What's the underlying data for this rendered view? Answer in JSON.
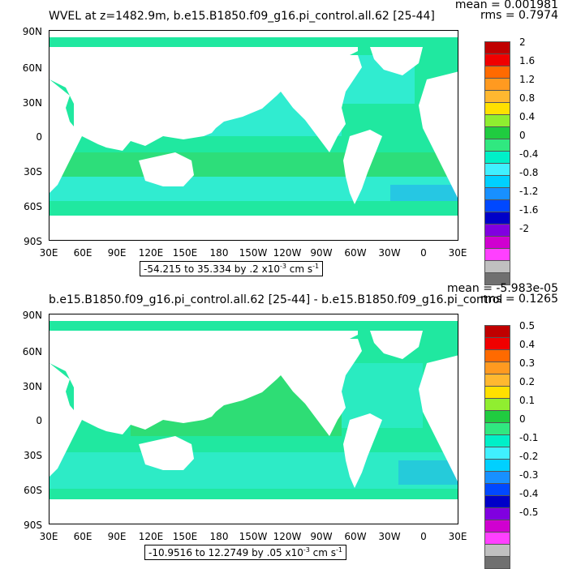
{
  "panels": [
    {
      "title": "WVEL at z=1482.9m, b.e15.B1850.f09_g16.pi_control.all.62 [25-44]",
      "mean_text": "mean = 0.001981",
      "rms_text": "rms = 0.7974",
      "range_prefix": "-54.215 to 35.334 by .2 x10",
      "range_exp": "-3",
      "range_unit": " cm s",
      "range_unit_exp": "-1",
      "colorbar_labels": [
        "2",
        "1.6",
        "1.2",
        "0.8",
        "0.4",
        "0",
        "-0.4",
        "-0.8",
        "-1.2",
        "-1.6",
        "-2"
      ]
    },
    {
      "title": "b.e15.B1850.f09_g16.pi_control.all.62 [25-44] - b.e15.B1850.f09_g16.pi_control",
      "mean_text": "mean = -5.983e-05",
      "rms_text": "rms = 0.1265",
      "range_prefix": "-10.9516 to 12.2749 by .05 x10",
      "range_exp": "-3",
      "range_unit": " cm s",
      "range_unit_exp": "-1",
      "colorbar_labels": [
        "0.5",
        "0.4",
        "0.3",
        "0.2",
        "0.1",
        "0",
        "-0.1",
        "-0.2",
        "-0.3",
        "-0.4",
        "-0.5"
      ]
    }
  ],
  "lat_labels": [
    "90N",
    "60N",
    "30N",
    "0",
    "30S",
    "60S",
    "90S"
  ],
  "lon_labels": [
    "30E",
    "60E",
    "90E",
    "120E",
    "150E",
    "180",
    "150W",
    "120W",
    "90W",
    "60W",
    "30W",
    "0",
    "30E"
  ],
  "colorbar_colors": [
    "#c00000",
    "#f00000",
    "#ff6a00",
    "#ff9a20",
    "#ffb830",
    "#ffe000",
    "#90ee30",
    "#20cc40",
    "#30e880",
    "#00f0c8",
    "#40f0ff",
    "#00d0ff",
    "#1890ff",
    "#0048ff",
    "#0000c8",
    "#8000e0",
    "#d000d0",
    "#ff40ff",
    "#c0c0c0",
    "#707070"
  ],
  "ocean_colors": {
    "base": "#20e8a0",
    "cyan": "#40f0ff",
    "green": "#40d040",
    "blue": "#1890ff"
  }
}
